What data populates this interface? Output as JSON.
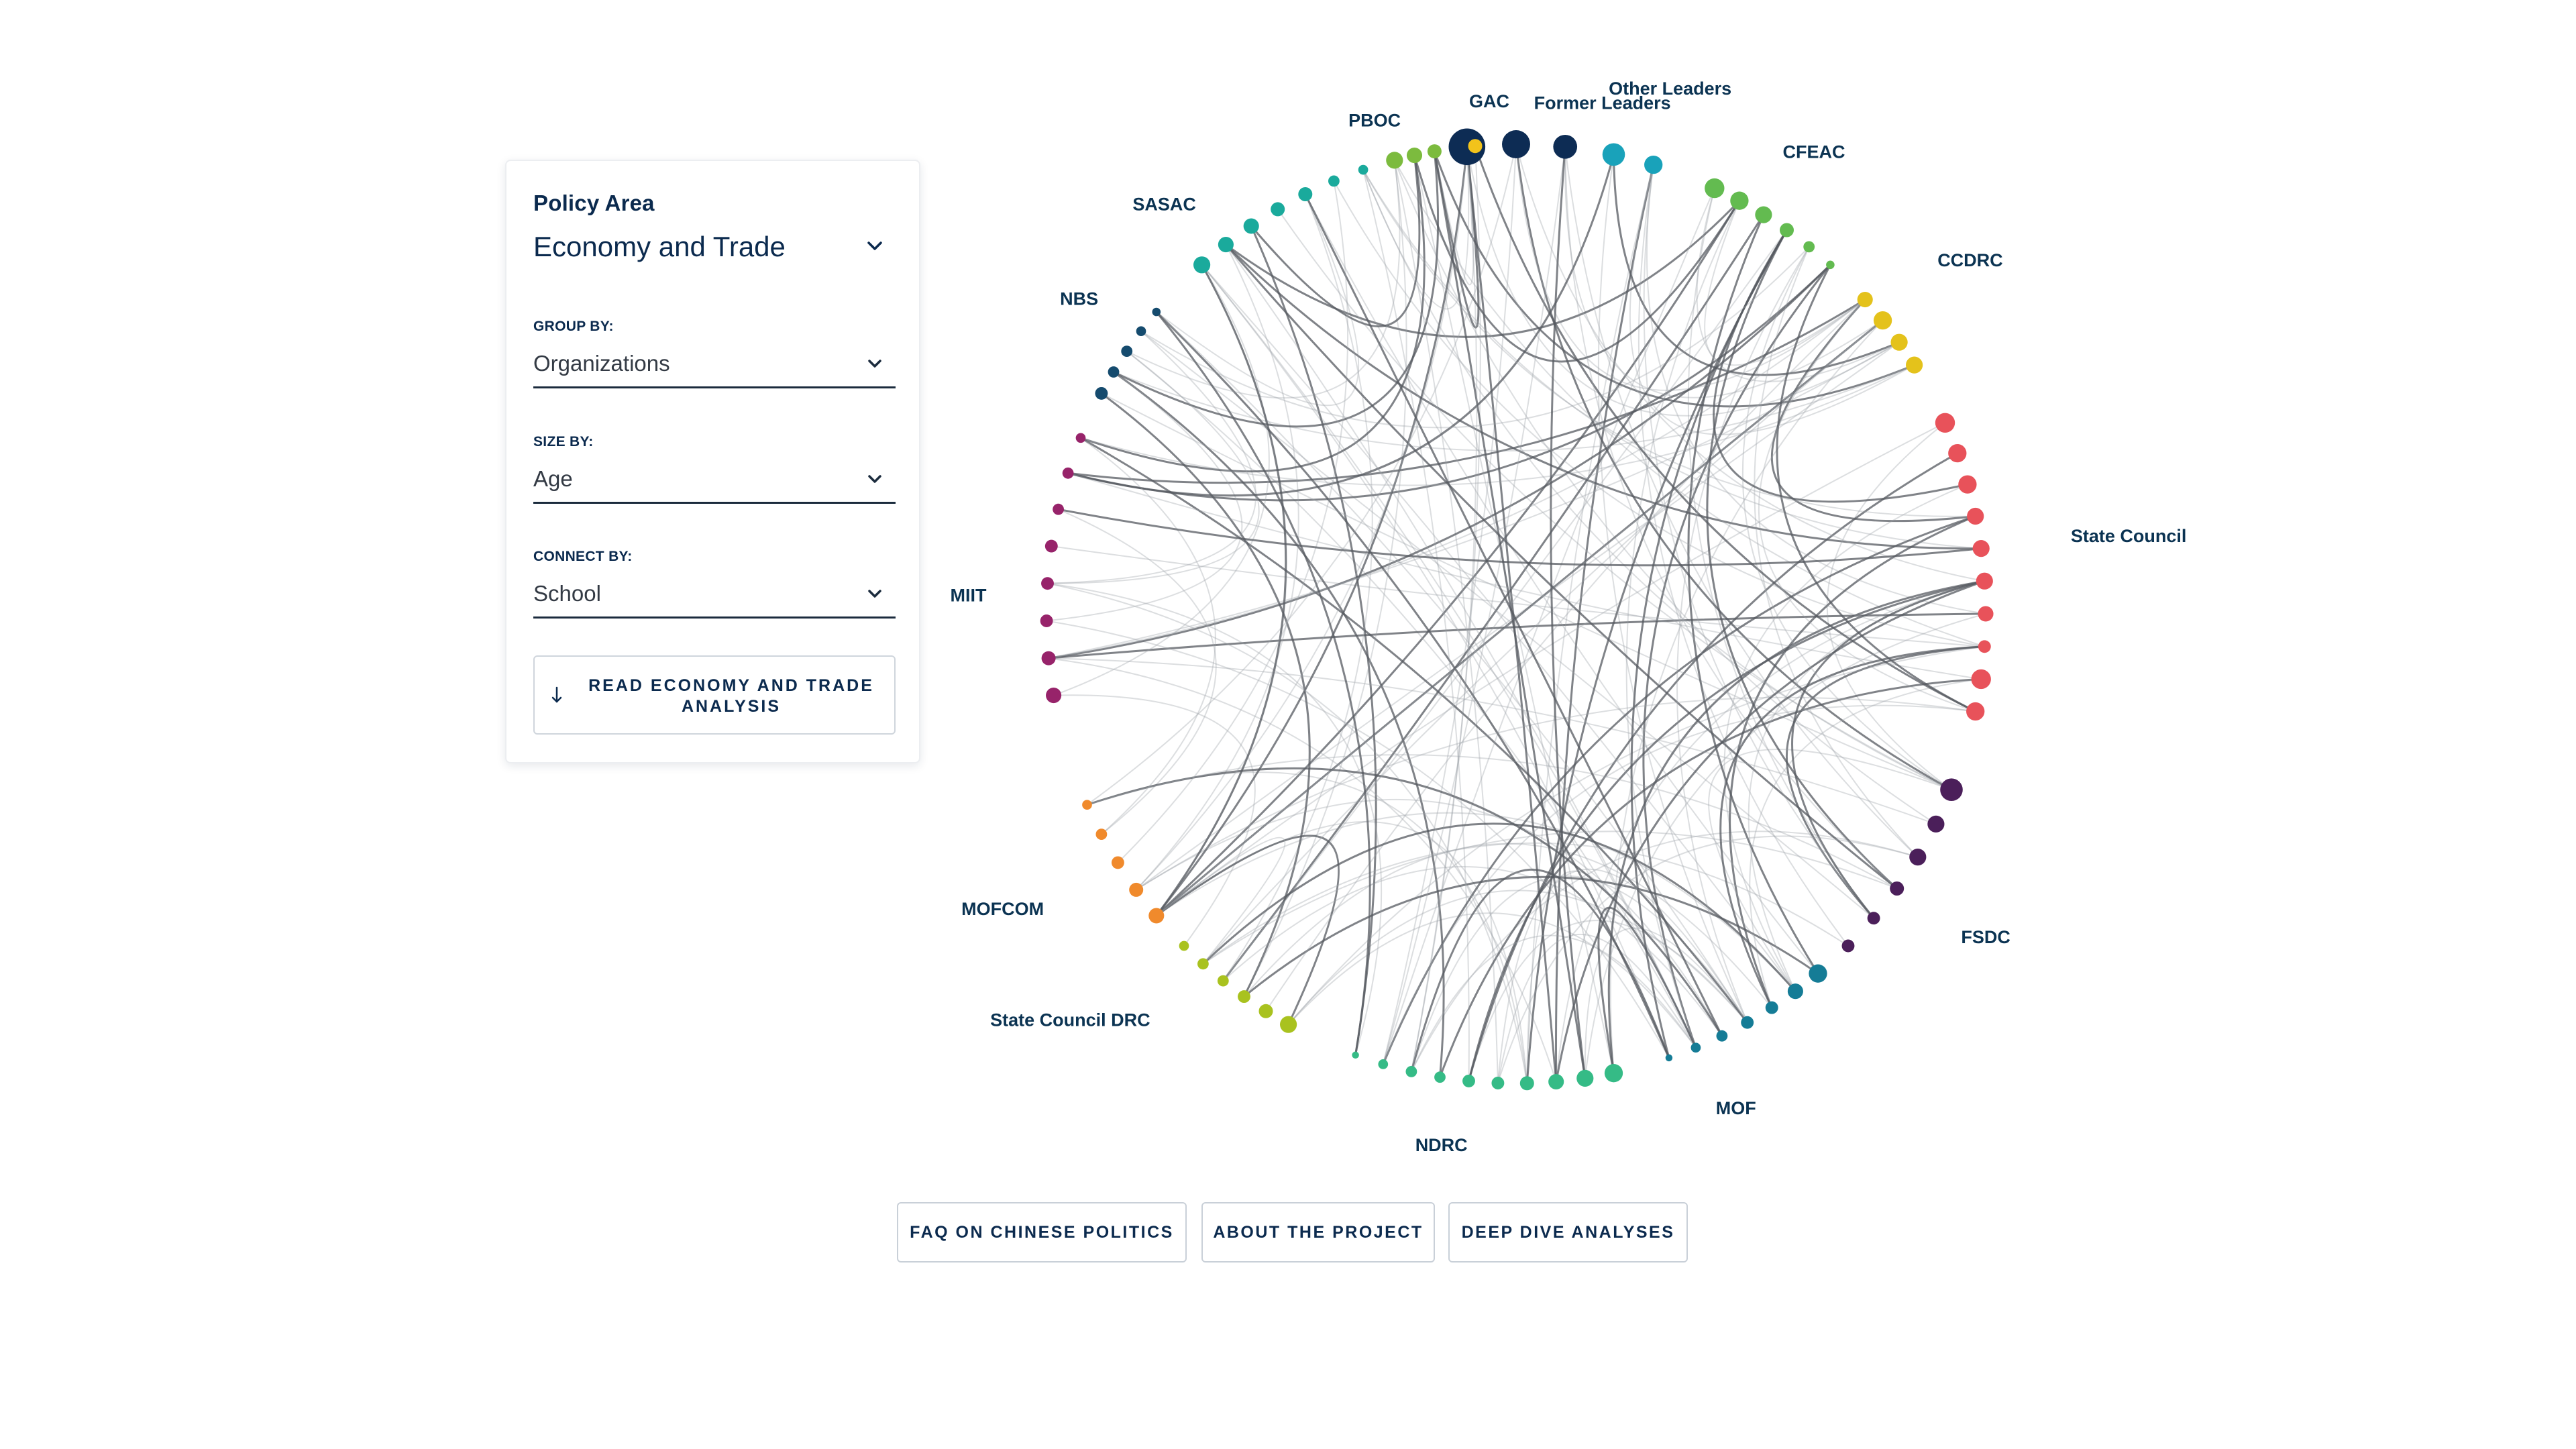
{
  "panel": {
    "policy_area_label": "Policy Area",
    "policy_area_value": "Economy and Trade",
    "group_by_label": "GROUP BY:",
    "group_by_value": "Organizations",
    "size_by_label": "SIZE BY:",
    "size_by_value": "Age",
    "connect_by_label": "CONNECT BY:",
    "connect_by_value": "School",
    "read_button_label": "READ ECONOMY AND TRADE ANALYSIS"
  },
  "footer": {
    "faq_label": "FAQ ON CHINESE POLITICS",
    "about_label": "ABOUT THE PROJECT",
    "deep_dive_label": "DEEP DIVE ANALYSES"
  },
  "chart_data": {
    "type": "chord-network",
    "description_grouping": "Organizations",
    "size_by": "Age",
    "connect_by": "School",
    "groups": [
      {
        "name": "Former Leaders",
        "color": "#0d2c54",
        "count": 3
      },
      {
        "name": "Other Leaders",
        "color": "#19a2ba",
        "count": 2
      },
      {
        "name": "CFEAC",
        "color": "#63bb50",
        "count": 6
      },
      {
        "name": "CCDRC",
        "color": "#e4c21b",
        "count": 4
      },
      {
        "name": "State Council",
        "color": "#e8525a",
        "count": 10
      },
      {
        "name": "FSDC",
        "color": "#4b1f5a",
        "count": 6
      },
      {
        "name": "MOF",
        "color": "#157c96",
        "count": 7
      },
      {
        "name": "NDRC",
        "color": "#35bb86",
        "count": 10
      },
      {
        "name": "State Council DRC",
        "color": "#a9c21f",
        "count": 6
      },
      {
        "name": "MOFCOM",
        "color": "#f08a2c",
        "count": 5
      },
      {
        "name": "MIIT",
        "color": "#97236a",
        "count": 8
      },
      {
        "name": "NBS",
        "color": "#154b6e",
        "count": 5
      },
      {
        "name": "SASAC",
        "color": "#1aaa9c",
        "count": 7
      },
      {
        "name": "PBOC",
        "color": "#7cbb3e",
        "count": 3
      },
      {
        "name": "GAC",
        "color": "#f2c31b",
        "count": 1
      }
    ]
  }
}
